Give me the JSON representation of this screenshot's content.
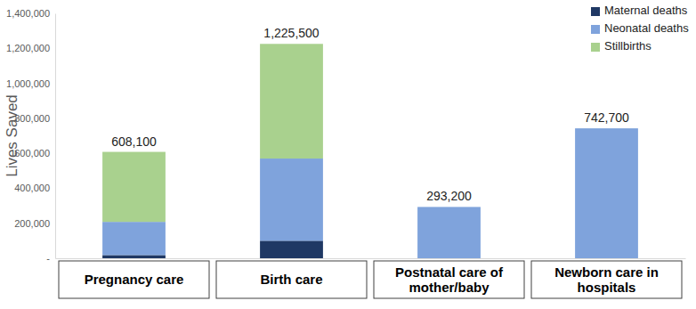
{
  "chart_data": {
    "type": "bar",
    "stacked": true,
    "y_label": "Lives Saved",
    "categories": [
      "Pregnancy care",
      "Birth care",
      "Postnatal care of mother/baby",
      "Newborn care in hospitals"
    ],
    "series": [
      {
        "name": "Maternal deaths",
        "color": "#1f3864",
        "values": [
          18000,
          100000,
          0,
          0
        ]
      },
      {
        "name": "Neonatal deaths",
        "color": "#7fa3dc",
        "values": [
          190000,
          470000,
          293200,
          742700
        ]
      },
      {
        "name": "Stillbirths",
        "color": "#a9d18e",
        "values": [
          400100,
          655500,
          0,
          0
        ]
      }
    ],
    "totals": [
      {
        "value": 608100,
        "label": "608,100"
      },
      {
        "value": 1225500,
        "label": "1,225,500"
      },
      {
        "value": 293200,
        "label": "293,200"
      },
      {
        "value": 742700,
        "label": "742,700"
      }
    ],
    "ylim": [
      0,
      1400000
    ],
    "yticks": [
      {
        "value": 0,
        "label": "-"
      },
      {
        "value": 200000,
        "label": "200,000"
      },
      {
        "value": 400000,
        "label": "400,000"
      },
      {
        "value": 600000,
        "label": "600,000"
      },
      {
        "value": 800000,
        "label": "800,000"
      },
      {
        "value": 1000000,
        "label": "1,000,000"
      },
      {
        "value": 1200000,
        "label": "1,200,000"
      },
      {
        "value": 1400000,
        "label": "1,400,000"
      }
    ],
    "grid": false,
    "legend": "upper right"
  }
}
